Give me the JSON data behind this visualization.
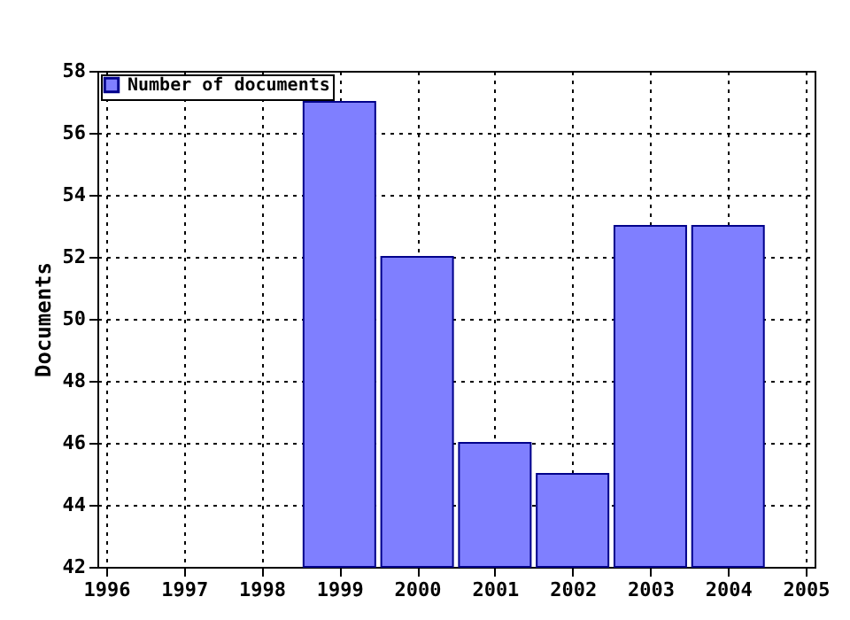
{
  "chart_data": {
    "type": "bar",
    "ylabel": "Documents",
    "x": [
      1999,
      2000,
      2001,
      2002,
      2003,
      2004
    ],
    "series": [
      {
        "name": "Number of documents",
        "color": "#7f7fff",
        "values": [
          57,
          52,
          46,
          45,
          53,
          53
        ]
      }
    ],
    "xlim": [
      1996,
      2005
    ],
    "xticks": [
      1996,
      1997,
      1998,
      1999,
      2000,
      2001,
      2002,
      2003,
      2004,
      2005
    ],
    "ylim": [
      42,
      58
    ],
    "yticks": [
      42,
      44,
      46,
      48,
      50,
      52,
      54,
      56,
      58
    ],
    "grid": true,
    "legend": "top left"
  }
}
